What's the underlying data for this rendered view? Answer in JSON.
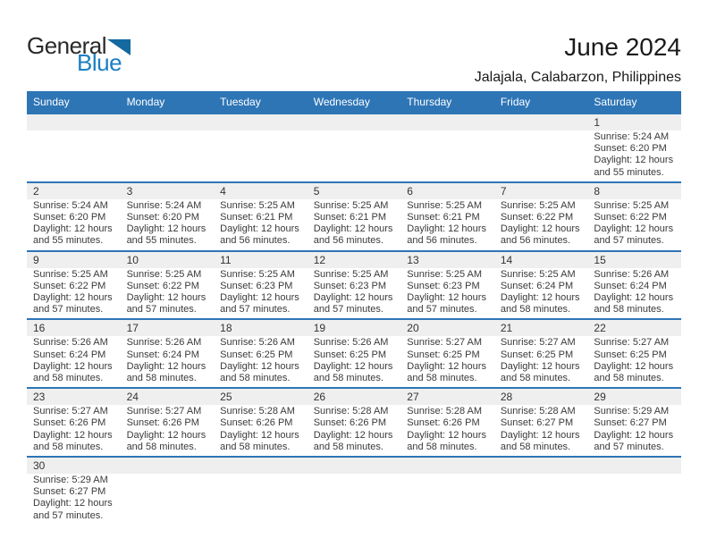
{
  "logo": {
    "line1": "General",
    "line2": "Blue"
  },
  "title": "June 2024",
  "location": "Jalajala, Calabarzon, Philippines",
  "colors": {
    "header_bg": "#2E75B6",
    "week_divider": "#2E75B6",
    "day_strip_bg": "#EFEFEF",
    "logo_blue": "#1B7FC4",
    "logo_dark": "#2A2A2A"
  },
  "icons": {
    "logo_triangle": "triangle-flag-icon"
  },
  "calendar": {
    "weekdays": [
      "Sunday",
      "Monday",
      "Tuesday",
      "Wednesday",
      "Thursday",
      "Friday",
      "Saturday"
    ],
    "weeks": [
      [
        null,
        null,
        null,
        null,
        null,
        null,
        {
          "day": "1",
          "lines": [
            "Sunrise: 5:24 AM",
            "Sunset: 6:20 PM",
            "Daylight: 12 hours",
            "and 55 minutes."
          ]
        }
      ],
      [
        {
          "day": "2",
          "lines": [
            "Sunrise: 5:24 AM",
            "Sunset: 6:20 PM",
            "Daylight: 12 hours",
            "and 55 minutes."
          ]
        },
        {
          "day": "3",
          "lines": [
            "Sunrise: 5:24 AM",
            "Sunset: 6:20 PM",
            "Daylight: 12 hours",
            "and 55 minutes."
          ]
        },
        {
          "day": "4",
          "lines": [
            "Sunrise: 5:25 AM",
            "Sunset: 6:21 PM",
            "Daylight: 12 hours",
            "and 56 minutes."
          ]
        },
        {
          "day": "5",
          "lines": [
            "Sunrise: 5:25 AM",
            "Sunset: 6:21 PM",
            "Daylight: 12 hours",
            "and 56 minutes."
          ]
        },
        {
          "day": "6",
          "lines": [
            "Sunrise: 5:25 AM",
            "Sunset: 6:21 PM",
            "Daylight: 12 hours",
            "and 56 minutes."
          ]
        },
        {
          "day": "7",
          "lines": [
            "Sunrise: 5:25 AM",
            "Sunset: 6:22 PM",
            "Daylight: 12 hours",
            "and 56 minutes."
          ]
        },
        {
          "day": "8",
          "lines": [
            "Sunrise: 5:25 AM",
            "Sunset: 6:22 PM",
            "Daylight: 12 hours",
            "and 57 minutes."
          ]
        }
      ],
      [
        {
          "day": "9",
          "lines": [
            "Sunrise: 5:25 AM",
            "Sunset: 6:22 PM",
            "Daylight: 12 hours",
            "and 57 minutes."
          ]
        },
        {
          "day": "10",
          "lines": [
            "Sunrise: 5:25 AM",
            "Sunset: 6:22 PM",
            "Daylight: 12 hours",
            "and 57 minutes."
          ]
        },
        {
          "day": "11",
          "lines": [
            "Sunrise: 5:25 AM",
            "Sunset: 6:23 PM",
            "Daylight: 12 hours",
            "and 57 minutes."
          ]
        },
        {
          "day": "12",
          "lines": [
            "Sunrise: 5:25 AM",
            "Sunset: 6:23 PM",
            "Daylight: 12 hours",
            "and 57 minutes."
          ]
        },
        {
          "day": "13",
          "lines": [
            "Sunrise: 5:25 AM",
            "Sunset: 6:23 PM",
            "Daylight: 12 hours",
            "and 57 minutes."
          ]
        },
        {
          "day": "14",
          "lines": [
            "Sunrise: 5:25 AM",
            "Sunset: 6:24 PM",
            "Daylight: 12 hours",
            "and 58 minutes."
          ]
        },
        {
          "day": "15",
          "lines": [
            "Sunrise: 5:26 AM",
            "Sunset: 6:24 PM",
            "Daylight: 12 hours",
            "and 58 minutes."
          ]
        }
      ],
      [
        {
          "day": "16",
          "lines": [
            "Sunrise: 5:26 AM",
            "Sunset: 6:24 PM",
            "Daylight: 12 hours",
            "and 58 minutes."
          ]
        },
        {
          "day": "17",
          "lines": [
            "Sunrise: 5:26 AM",
            "Sunset: 6:24 PM",
            "Daylight: 12 hours",
            "and 58 minutes."
          ]
        },
        {
          "day": "18",
          "lines": [
            "Sunrise: 5:26 AM",
            "Sunset: 6:25 PM",
            "Daylight: 12 hours",
            "and 58 minutes."
          ]
        },
        {
          "day": "19",
          "lines": [
            "Sunrise: 5:26 AM",
            "Sunset: 6:25 PM",
            "Daylight: 12 hours",
            "and 58 minutes."
          ]
        },
        {
          "day": "20",
          "lines": [
            "Sunrise: 5:27 AM",
            "Sunset: 6:25 PM",
            "Daylight: 12 hours",
            "and 58 minutes."
          ]
        },
        {
          "day": "21",
          "lines": [
            "Sunrise: 5:27 AM",
            "Sunset: 6:25 PM",
            "Daylight: 12 hours",
            "and 58 minutes."
          ]
        },
        {
          "day": "22",
          "lines": [
            "Sunrise: 5:27 AM",
            "Sunset: 6:25 PM",
            "Daylight: 12 hours",
            "and 58 minutes."
          ]
        }
      ],
      [
        {
          "day": "23",
          "lines": [
            "Sunrise: 5:27 AM",
            "Sunset: 6:26 PM",
            "Daylight: 12 hours",
            "and 58 minutes."
          ]
        },
        {
          "day": "24",
          "lines": [
            "Sunrise: 5:27 AM",
            "Sunset: 6:26 PM",
            "Daylight: 12 hours",
            "and 58 minutes."
          ]
        },
        {
          "day": "25",
          "lines": [
            "Sunrise: 5:28 AM",
            "Sunset: 6:26 PM",
            "Daylight: 12 hours",
            "and 58 minutes."
          ]
        },
        {
          "day": "26",
          "lines": [
            "Sunrise: 5:28 AM",
            "Sunset: 6:26 PM",
            "Daylight: 12 hours",
            "and 58 minutes."
          ]
        },
        {
          "day": "27",
          "lines": [
            "Sunrise: 5:28 AM",
            "Sunset: 6:26 PM",
            "Daylight: 12 hours",
            "and 58 minutes."
          ]
        },
        {
          "day": "28",
          "lines": [
            "Sunrise: 5:28 AM",
            "Sunset: 6:27 PM",
            "Daylight: 12 hours",
            "and 58 minutes."
          ]
        },
        {
          "day": "29",
          "lines": [
            "Sunrise: 5:29 AM",
            "Sunset: 6:27 PM",
            "Daylight: 12 hours",
            "and 57 minutes."
          ]
        }
      ],
      [
        {
          "day": "30",
          "lines": [
            "Sunrise: 5:29 AM",
            "Sunset: 6:27 PM",
            "Daylight: 12 hours",
            "and 57 minutes."
          ]
        },
        null,
        null,
        null,
        null,
        null,
        null
      ]
    ]
  }
}
